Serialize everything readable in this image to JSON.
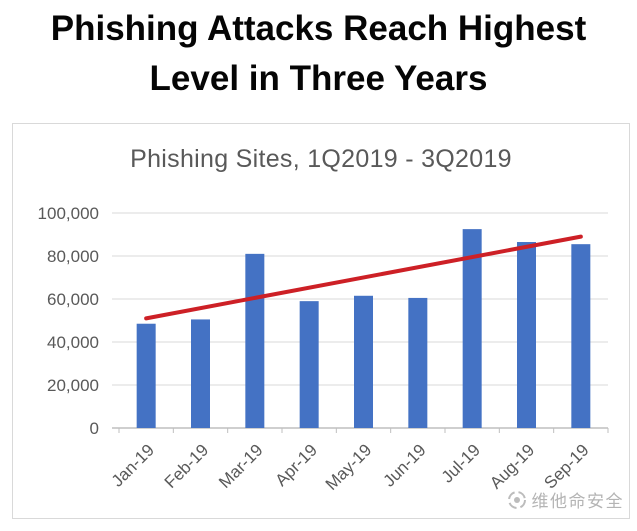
{
  "page": {
    "title_line1": "Phishing Attacks Reach Highest",
    "title_line2": "Level in Three Years"
  },
  "chart_data": {
    "type": "bar",
    "title": "Phishing Sites, 1Q2019 - 3Q2019",
    "categories": [
      "Jan-19",
      "Feb-19",
      "Mar-19",
      "Apr-19",
      "May-19",
      "Jun-19",
      "Jul-19",
      "Aug-19",
      "Sep-19"
    ],
    "values": [
      48500,
      50500,
      81000,
      59000,
      61500,
      60500,
      92500,
      86500,
      85500
    ],
    "xlabel": "",
    "ylabel": "",
    "ylim": [
      0,
      100000
    ],
    "ytick_interval": 20000,
    "ytick_labels": [
      "0",
      "20,000",
      "40,000",
      "60,000",
      "80,000",
      "100,000"
    ],
    "grid": true,
    "legend": false,
    "bar_color": "#4472c4",
    "gridline_color": "#d9d9d9",
    "axis_line_color": "#bfbfbf",
    "axis_label_color": "#595959",
    "trendline": {
      "type": "linear",
      "start_value": 51000,
      "end_value": 89000,
      "color": "#cd2026"
    }
  },
  "watermark": {
    "icon": "circle-logo-icon",
    "text": "维他命安全"
  }
}
